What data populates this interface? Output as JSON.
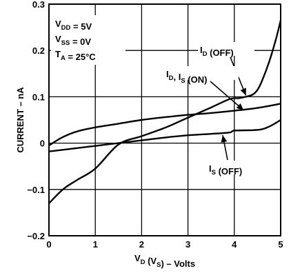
{
  "chart_data": {
    "type": "line",
    "xlabel": {
      "parts": [
        [
          "V",
          false
        ],
        [
          "D",
          true
        ],
        [
          " (V",
          false
        ],
        [
          "S",
          true
        ],
        [
          ") – Volts",
          false
        ]
      ]
    },
    "ylabel": "CURRENT – nA",
    "xlim": [
      0,
      5
    ],
    "ylim": [
      -0.2,
      0.3
    ],
    "xticks": [
      0,
      1,
      2,
      3,
      4,
      5
    ],
    "xtick_labels": [
      "0",
      "1",
      "2",
      "3",
      "4",
      "5"
    ],
    "yticks": [
      -0.2,
      -0.1,
      0,
      0.1,
      0.2,
      0.3
    ],
    "ytick_labels": [
      "−0.2",
      "−0.1",
      "0",
      "0.1",
      "0.2",
      "0.3"
    ],
    "grid": true,
    "conditions": [
      {
        "parts": [
          [
            "V",
            false
          ],
          [
            "DD",
            true
          ],
          [
            " = 5V",
            false
          ]
        ]
      },
      {
        "parts": [
          [
            "V",
            false
          ],
          [
            "SS",
            true
          ],
          [
            " = 0V",
            false
          ]
        ]
      },
      {
        "parts": [
          [
            "T",
            false
          ],
          [
            "A",
            true
          ],
          [
            " = 25°C",
            false
          ]
        ]
      }
    ],
    "series": [
      {
        "name": "I_D (OFF)",
        "label_parts": [
          [
            "I",
            false
          ],
          [
            "D",
            true
          ],
          [
            " (OFF)",
            false
          ]
        ],
        "x": [
          0,
          0.3,
          0.6,
          1.0,
          1.5,
          2.0,
          2.5,
          3.0,
          3.5,
          3.9,
          4.1,
          4.25,
          4.4,
          4.5,
          4.6,
          4.75,
          4.9,
          5.0
        ],
        "y": [
          -0.13,
          -0.1,
          -0.08,
          -0.055,
          -0.003,
          0.015,
          0.033,
          0.055,
          0.077,
          0.095,
          0.097,
          0.1,
          0.105,
          0.115,
          0.135,
          0.175,
          0.225,
          0.265
        ]
      },
      {
        "name": "I_D, I_S (ON)",
        "label_parts": [
          [
            "I",
            false
          ],
          [
            "D",
            true
          ],
          [
            ", I",
            false
          ],
          [
            "S",
            true
          ],
          [
            " (ON)",
            false
          ]
        ],
        "x": [
          0,
          0.3,
          0.6,
          1.0,
          1.5,
          2.0,
          2.5,
          3.0,
          3.5,
          4.0,
          4.5,
          5.0
        ],
        "y": [
          -0.005,
          0.013,
          0.025,
          0.034,
          0.042,
          0.05,
          0.056,
          0.061,
          0.065,
          0.07,
          0.076,
          0.085
        ]
      },
      {
        "name": "I_S (OFF)",
        "label_parts": [
          [
            "I",
            false
          ],
          [
            "S",
            true
          ],
          [
            " (OFF)",
            false
          ]
        ],
        "x": [
          0,
          0.5,
          1.0,
          1.5,
          2.0,
          2.5,
          3.0,
          3.5,
          3.9,
          4.0,
          4.4,
          4.6,
          4.8,
          5.0
        ],
        "y": [
          -0.018,
          -0.012,
          -0.006,
          0.0,
          0.006,
          0.012,
          0.017,
          0.02,
          0.023,
          0.027,
          0.028,
          0.03,
          0.038,
          0.05
        ]
      }
    ]
  }
}
